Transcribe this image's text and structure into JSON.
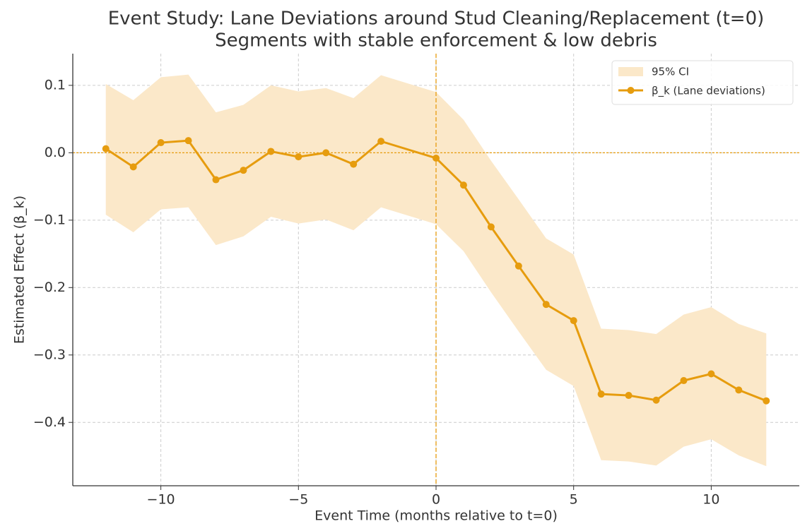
{
  "chart_data": {
    "type": "line",
    "title": "Event Study: Lane Deviations around Stud Cleaning/Replacement (t=0)",
    "subtitle": "Segments with stable enforcement & low debris",
    "x_label": "Event Time (months relative to t=0)",
    "y_label": "Estimated Effect (β_k)",
    "x": [
      -12,
      -11,
      -10,
      -9,
      -8,
      -7,
      -6,
      -5,
      -4,
      -3,
      -2,
      0,
      1,
      2,
      3,
      4,
      5,
      6,
      7,
      8,
      9,
      10,
      11,
      12
    ],
    "band": {
      "name": "95% CI",
      "color": "#fbe8c9",
      "upper": [
        0.102,
        0.078,
        0.112,
        0.116,
        0.06,
        0.071,
        0.1,
        0.091,
        0.096,
        0.081,
        0.115,
        0.09,
        0.049,
        -0.012,
        -0.069,
        -0.127,
        -0.151,
        -0.261,
        -0.263,
        -0.269,
        -0.24,
        -0.229,
        -0.254,
        -0.268
      ],
      "lower": [
        -0.092,
        -0.118,
        -0.084,
        -0.081,
        -0.137,
        -0.124,
        -0.095,
        -0.105,
        -0.099,
        -0.115,
        -0.081,
        -0.106,
        -0.146,
        -0.207,
        -0.265,
        -0.322,
        -0.346,
        -0.456,
        -0.458,
        -0.464,
        -0.436,
        -0.425,
        -0.449,
        -0.465
      ]
    },
    "series": [
      {
        "name": "β_k (Lane deviations)",
        "color": "#e69c0e",
        "values": [
          0.006,
          -0.021,
          0.015,
          0.018,
          -0.04,
          -0.026,
          0.002,
          -0.006,
          0.0,
          -0.017,
          0.017,
          -0.008,
          -0.048,
          -0.11,
          -0.168,
          -0.225,
          -0.249,
          -0.358,
          -0.36,
          -0.367,
          -0.338,
          -0.328,
          -0.352,
          -0.368
        ]
      }
    ],
    "hline": 0,
    "vline": 0,
    "xlim": [
      -13.2,
      13.2
    ],
    "ylim": [
      -0.494,
      0.147
    ],
    "xticks": [
      {
        "value": -10,
        "label": "−10"
      },
      {
        "value": -5,
        "label": "−5"
      },
      0,
      5,
      10
    ],
    "yticks": [
      {
        "value": -0.4,
        "label": "−0.4"
      },
      {
        "value": -0.3,
        "label": "−0.3"
      },
      {
        "value": -0.2,
        "label": "−0.2"
      },
      {
        "value": -0.1,
        "label": "−0.1"
      },
      {
        "value": 0,
        "label": "0.0"
      },
      0.1
    ],
    "grid": true,
    "legend": "upper right"
  }
}
